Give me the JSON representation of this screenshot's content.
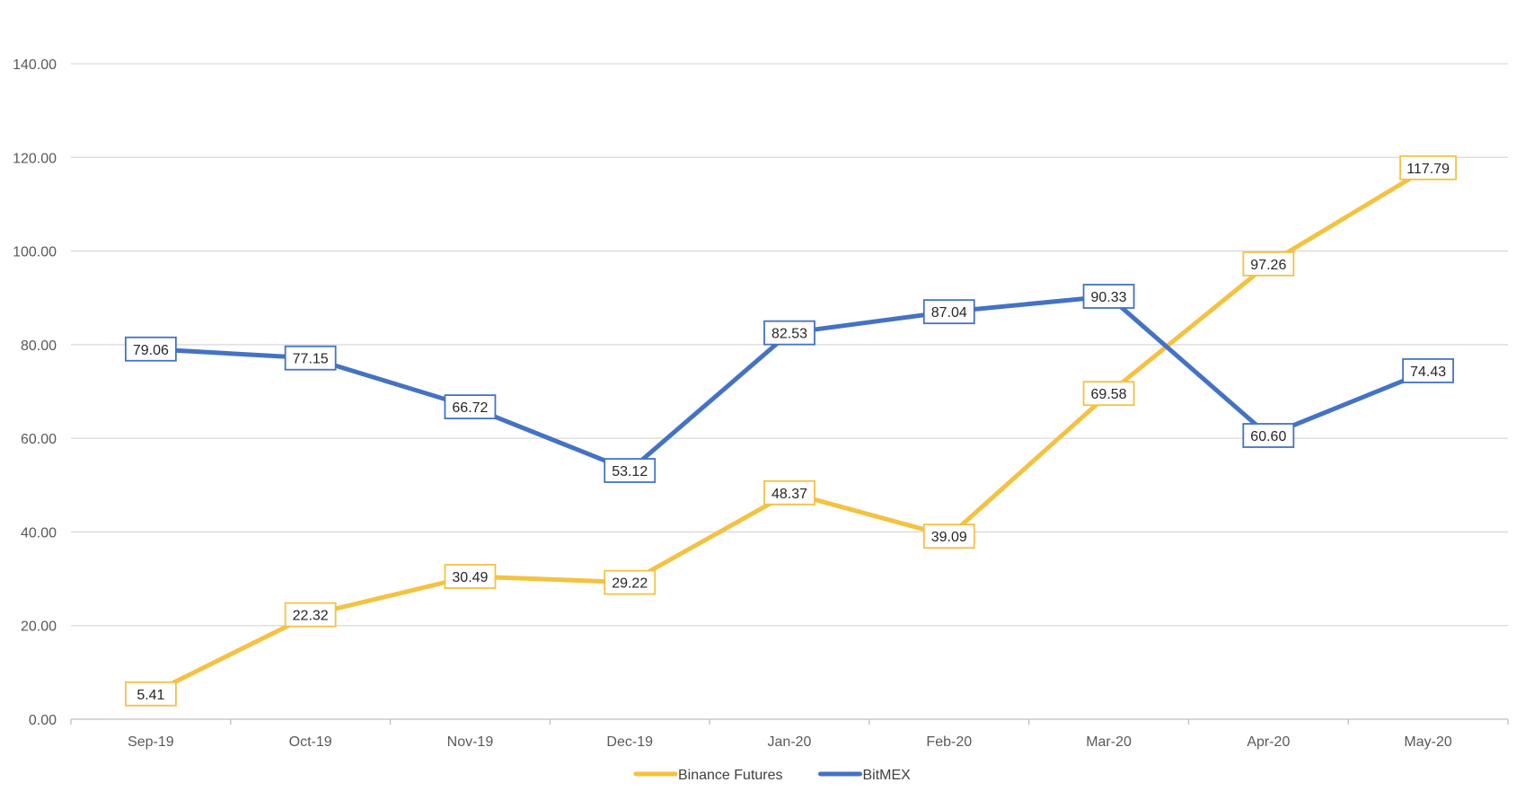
{
  "chart_data": {
    "type": "line",
    "title": "",
    "xlabel": "",
    "ylabel": "",
    "categories": [
      "Sep-19",
      "Oct-19",
      "Nov-19",
      "Dec-19",
      "Jan-20",
      "Feb-20",
      "Mar-20",
      "Apr-20",
      "May-20"
    ],
    "ylim": [
      0,
      140
    ],
    "yticks": [
      0,
      20,
      40,
      60,
      80,
      100,
      120,
      140
    ],
    "ytick_labels": [
      "0.00",
      "20.00",
      "40.00",
      "60.00",
      "80.00",
      "100.00",
      "120.00",
      "140.00"
    ],
    "grid": "horizontal",
    "legend_position": "bottom",
    "series": [
      {
        "name": "Binance Futures",
        "color": "#F4C242",
        "values": [
          5.41,
          22.32,
          30.49,
          29.22,
          48.37,
          39.09,
          69.58,
          97.26,
          117.79
        ],
        "labels": [
          "5.41",
          "22.32",
          "30.49",
          "29.22",
          "48.37",
          "39.09",
          "69.58",
          "97.26",
          "117.79"
        ]
      },
      {
        "name": "BitMEX",
        "color": "#4472C4",
        "values": [
          79.06,
          77.15,
          66.72,
          53.12,
          82.53,
          87.04,
          90.33,
          60.6,
          74.43
        ],
        "labels": [
          "79.06",
          "77.15",
          "66.72",
          "53.12",
          "82.53",
          "87.04",
          "90.33",
          "60.60",
          "74.43"
        ]
      }
    ]
  }
}
